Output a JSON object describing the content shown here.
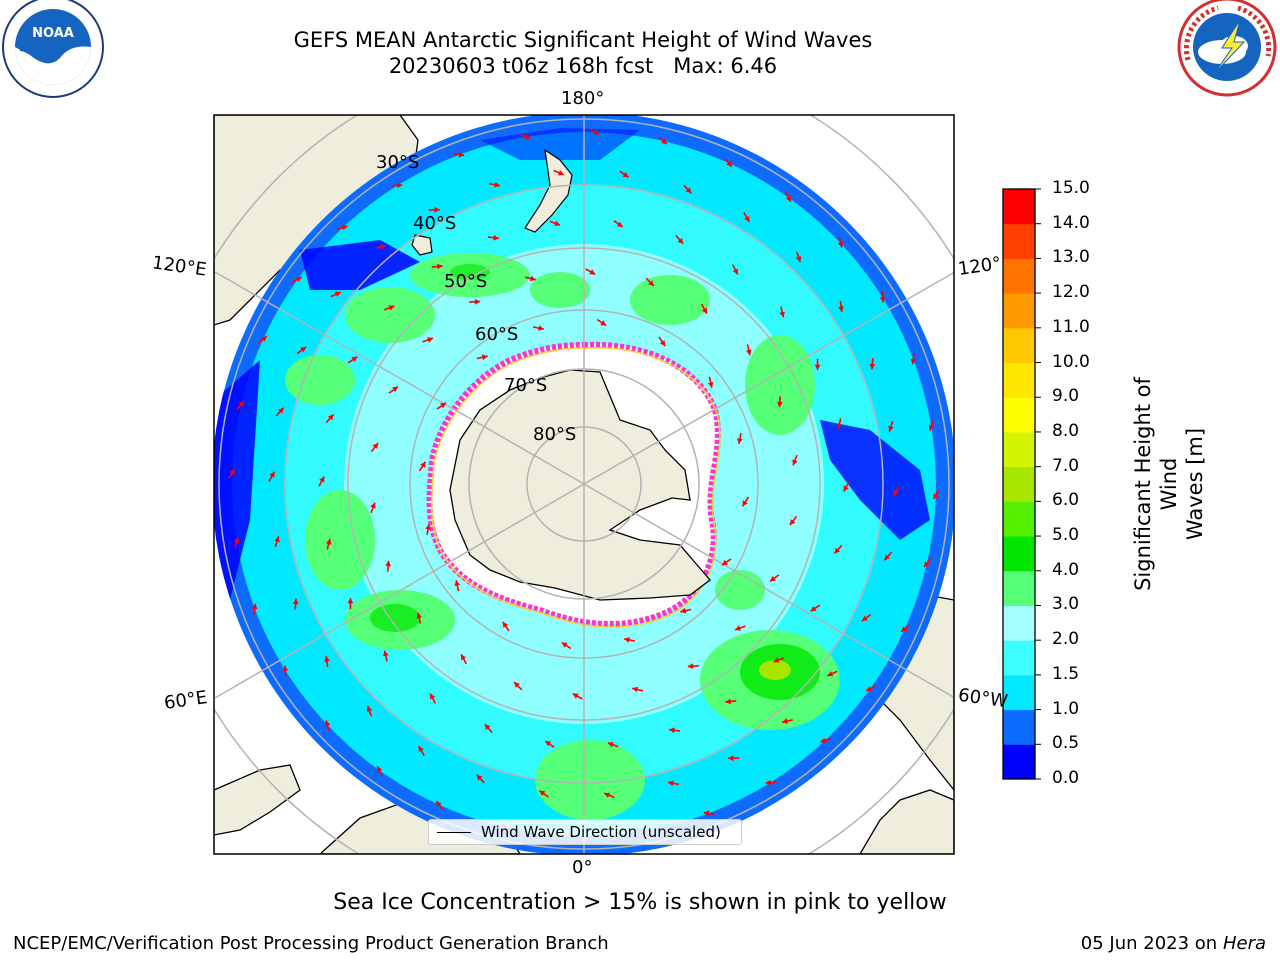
{
  "title": {
    "line1": "GEFS MEAN Antarctic Significant Height of Wind Waves",
    "line2": "20230603 t06z 168h fcst   Max: 6.46"
  },
  "logos": {
    "left": "NOAA",
    "left_ring_top": "NATIONAL OCEANIC AND ATMOSPHERIC ADMINISTRATION",
    "left_ring_bottom": "U.S. DEPARTMENT OF COMMERCE",
    "right_ring": "NATIONAL WEATHER SERVICE"
  },
  "map": {
    "projection": "south-polar-stereographic",
    "longitude_labels": [
      "180°",
      "120°E",
      "120°",
      "60°E",
      "60°W",
      "0°"
    ],
    "latitude_labels": [
      "30°S",
      "40°S",
      "50°S",
      "60°S",
      "70°S",
      "80°S"
    ],
    "legend_entry": "Wind Wave Direction (unscaled)"
  },
  "colorbar": {
    "label_line1": "Significant Height of Wind",
    "label_line2": "Waves [m]",
    "ticks": [
      "0.0",
      "0.5",
      "1.0",
      "1.5",
      "2.0",
      "3.0",
      "4.0",
      "5.0",
      "6.0",
      "7.0",
      "8.0",
      "9.0",
      "10.0",
      "11.0",
      "12.0",
      "13.0",
      "14.0",
      "15.0"
    ],
    "colors": [
      "#0000ff",
      "#0d6cff",
      "#00e9ff",
      "#3dffff",
      "#a6ffff",
      "#55ff77",
      "#00e600",
      "#55ef00",
      "#a6e600",
      "#d4f500",
      "#ffff00",
      "#ffe600",
      "#ffc800",
      "#ff9a00",
      "#ff7300",
      "#ff4000",
      "#ff0000"
    ]
  },
  "colors": {
    "land": "#efeedc",
    "ice": "#ffffff",
    "ice_edge": [
      "#ff33cc",
      "#ff99dd",
      "#ffcc33"
    ],
    "arrows": "#ff0000",
    "grid": "#b3b3b3"
  },
  "note": "Sea Ice Concentration > 15% is shown in pink to yellow",
  "footer": {
    "left": "NCEP/EMC/Verification Post Processing Product Generation Branch",
    "right_date": "05 Jun 2023 on",
    "right_host": "Hera"
  }
}
